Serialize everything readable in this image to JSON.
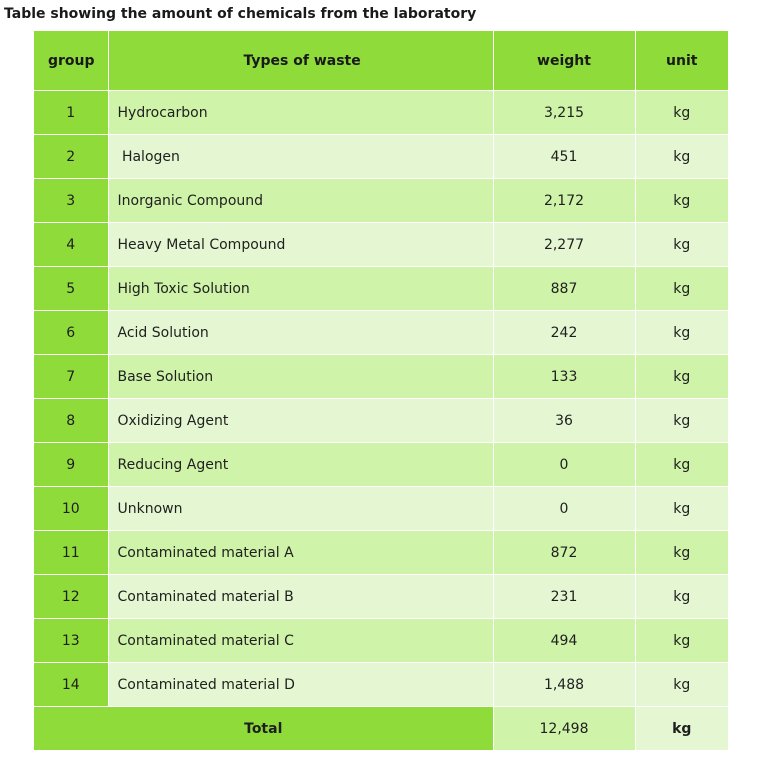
{
  "caption": "Table showing the amount of chemicals from the laboratory",
  "headers": {
    "group": "group",
    "type": "Types of waste",
    "weight": "weight",
    "unit": "unit"
  },
  "rows": [
    {
      "group": "1",
      "type": "Hydrocarbon",
      "weight": "3,215",
      "unit": "kg"
    },
    {
      "group": "2",
      "type": " Halogen",
      "weight": "451",
      "unit": "kg"
    },
    {
      "group": "3",
      "type": "Inorganic Compound",
      "weight": "2,172",
      "unit": "kg"
    },
    {
      "group": "4",
      "type": "Heavy Metal Compound",
      "weight": "2,277",
      "unit": "kg"
    },
    {
      "group": "5",
      "type": "High Toxic Solution",
      "weight": "887",
      "unit": "kg"
    },
    {
      "group": "6",
      "type": "Acid Solution",
      "weight": "242",
      "unit": "kg"
    },
    {
      "group": "7",
      "type": "Base Solution",
      "weight": "133",
      "unit": "kg"
    },
    {
      "group": "8",
      "type": "Oxidizing Agent",
      "weight": "36",
      "unit": "kg"
    },
    {
      "group": "9",
      "type": "Reducing Agent",
      "weight": "0",
      "unit": "kg"
    },
    {
      "group": "10",
      "type": "Unknown",
      "weight": "0",
      "unit": "kg"
    },
    {
      "group": "11",
      "type": "Contaminated material A",
      "weight": "872",
      "unit": "kg"
    },
    {
      "group": "12",
      "type": "Contaminated material B",
      "weight": "231",
      "unit": "kg"
    },
    {
      "group": "13",
      "type": "Contaminated material C",
      "weight": "494",
      "unit": "kg"
    },
    {
      "group": "14",
      "type": "Contaminated material D",
      "weight": "1,488",
      "unit": "kg"
    }
  ],
  "total": {
    "label": "Total",
    "weight": "12,498",
    "unit": "kg"
  },
  "colors": {
    "accent_green": "#8edb3a",
    "row_light": "#cff3a9",
    "row_lighter": "#e5f7d2"
  }
}
